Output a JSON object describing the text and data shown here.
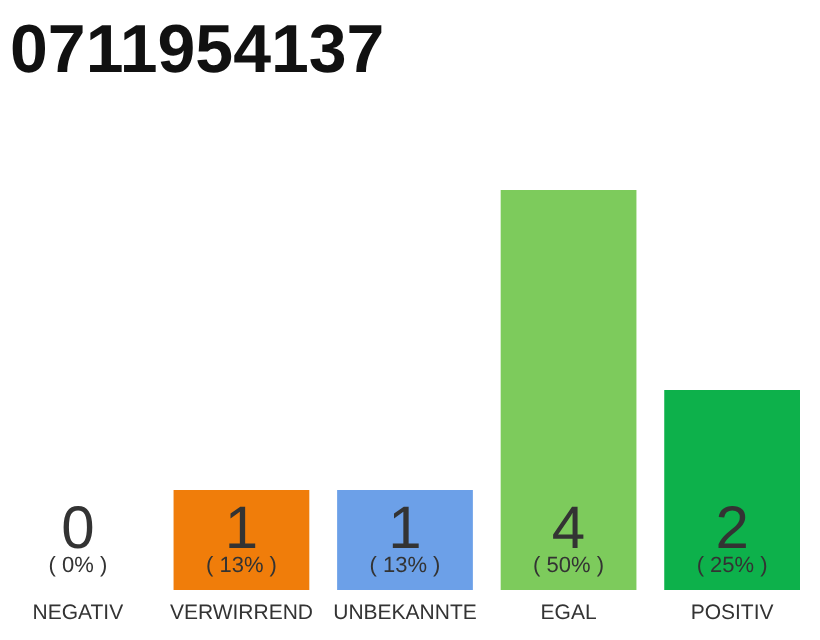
{
  "chart_data": {
    "type": "bar",
    "title": "0711954137",
    "categories": [
      "NEGATIV",
      "VERWIRREND",
      "UNBEKANNTE",
      "EGAL",
      "POSITIV"
    ],
    "values": [
      0,
      1,
      1,
      4,
      2
    ],
    "colors": [
      "#d0d0d0",
      "#f07d0a",
      "#6ca0e8",
      "#7dcb5c",
      "#0db14b"
    ],
    "ylim": [
      0,
      4
    ],
    "tick_labels": "x",
    "data_labels": true,
    "annotations": [
      "( 0% )",
      "( 13% )",
      "( 13% )",
      "( 50% )",
      "( 25% )"
    ]
  }
}
